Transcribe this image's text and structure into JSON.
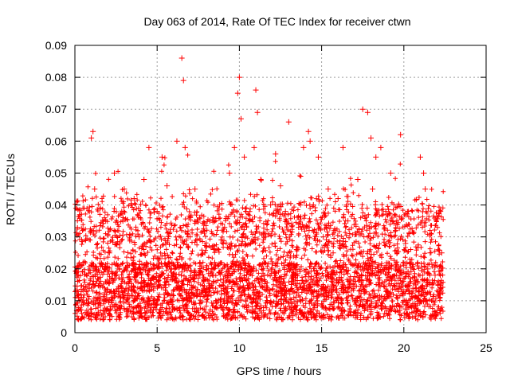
{
  "chart_data": {
    "type": "scatter",
    "title": "Day 063 of 2014, Rate Of TEC Index for receiver ctwn",
    "xlabel": "GPS time / hours",
    "ylabel": "ROTI / TECUs",
    "xlim": [
      0,
      25
    ],
    "ylim": [
      0,
      0.09
    ],
    "x_ticks": [
      0,
      5,
      10,
      15,
      20,
      25
    ],
    "y_ticks": [
      0,
      0.01,
      0.02,
      0.03,
      0.04,
      0.05,
      0.06,
      0.07,
      0.08,
      0.09
    ],
    "x_tick_labels": [
      "0",
      "5",
      "10",
      "15",
      "20",
      "25"
    ],
    "y_tick_labels": [
      "0",
      "0.01",
      "0.02",
      "0.03",
      "0.04",
      "0.05",
      "0.06",
      "0.07",
      "0.08",
      "0.09"
    ],
    "grid": true,
    "marker": "plus",
    "series": [
      {
        "color": "#ff0000",
        "x": [
          0.2,
          0.5,
          0.8,
          1.0,
          1.1,
          1.2,
          1.5,
          1.8,
          2.1,
          2.4,
          2.7,
          3.0,
          3.3,
          3.6,
          3.9,
          4.2,
          4.5,
          4.7,
          5.0,
          5.3,
          5.6,
          5.9,
          6.2,
          6.5,
          6.6,
          6.7,
          7.0,
          7.3,
          7.6,
          7.9,
          8.2,
          8.5,
          8.8,
          9.1,
          9.4,
          9.7,
          9.9,
          10.0,
          10.1,
          10.3,
          10.6,
          10.9,
          11.0,
          11.1,
          11.3,
          11.6,
          11.9,
          12.2,
          12.5,
          12.8,
          13.0,
          13.3,
          13.6,
          13.9,
          14.2,
          14.3,
          14.5,
          14.8,
          15.1,
          15.4,
          15.7,
          16.0,
          16.3,
          16.6,
          16.9,
          17.2,
          17.5,
          17.8,
          18.0,
          18.1,
          18.3,
          18.6,
          18.9,
          19.2,
          19.5,
          19.8,
          20.1,
          20.4,
          20.7,
          21.0,
          21.2,
          21.3,
          21.6,
          21.9,
          22.2,
          22.3
        ],
        "y": [
          0.018,
          0.022,
          0.015,
          0.061,
          0.063,
          0.045,
          0.012,
          0.036,
          0.025,
          0.05,
          0.02,
          0.045,
          0.016,
          0.042,
          0.03,
          0.048,
          0.058,
          0.02,
          0.038,
          0.055,
          0.046,
          0.022,
          0.06,
          0.086,
          0.079,
          0.058,
          0.03,
          0.045,
          0.018,
          0.025,
          0.035,
          0.022,
          0.04,
          0.033,
          0.05,
          0.058,
          0.075,
          0.08,
          0.067,
          0.055,
          0.035,
          0.058,
          0.076,
          0.069,
          0.048,
          0.03,
          0.04,
          0.056,
          0.046,
          0.038,
          0.066,
          0.024,
          0.033,
          0.058,
          0.063,
          0.06,
          0.04,
          0.055,
          0.03,
          0.045,
          0.025,
          0.042,
          0.058,
          0.035,
          0.024,
          0.048,
          0.07,
          0.069,
          0.061,
          0.045,
          0.055,
          0.058,
          0.038,
          0.05,
          0.032,
          0.062,
          0.028,
          0.022,
          0.015,
          0.055,
          0.05,
          0.045,
          0.025,
          0.018,
          0.012,
          0.025
        ]
      }
    ]
  }
}
